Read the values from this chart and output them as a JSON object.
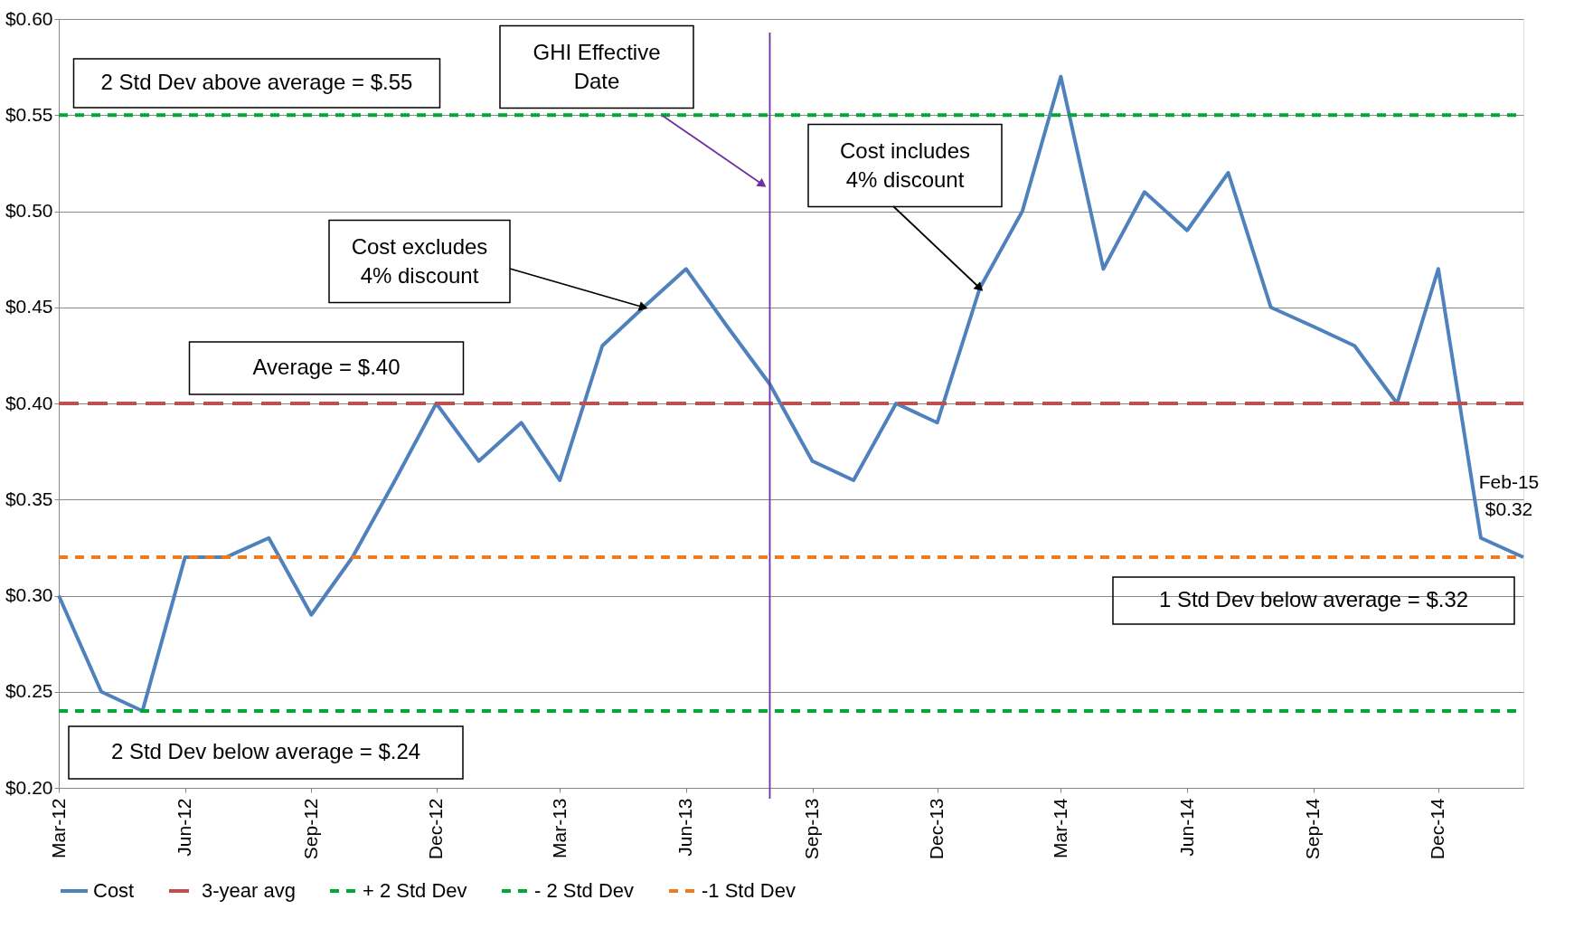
{
  "chart_data": {
    "type": "line",
    "x": [
      "2012-03",
      "2012-04",
      "2012-05",
      "2012-06",
      "2012-07",
      "2012-08",
      "2012-09",
      "2012-10",
      "2012-11",
      "2012-12",
      "2013-01",
      "2013-02",
      "2013-03",
      "2013-04",
      "2013-05",
      "2013-06",
      "2013-07",
      "2013-08",
      "2013-09",
      "2013-10",
      "2013-11",
      "2013-12",
      "2014-01",
      "2014-02",
      "2014-03",
      "2014-04",
      "2014-05",
      "2014-06",
      "2014-07",
      "2014-08",
      "2014-09",
      "2014-10",
      "2014-11",
      "2014-12",
      "2015-01",
      "2015-02"
    ],
    "series": [
      {
        "name": "Cost",
        "color": "#4f81bd",
        "line_style": "solid",
        "values": [
          0.3,
          0.25,
          0.24,
          0.32,
          0.32,
          0.33,
          0.29,
          0.32,
          0.36,
          0.4,
          0.37,
          0.39,
          0.36,
          0.43,
          0.45,
          0.47,
          0.44,
          0.41,
          0.37,
          0.36,
          0.4,
          0.39,
          0.46,
          0.5,
          0.57,
          0.47,
          0.51,
          0.49,
          0.52,
          0.45,
          0.44,
          0.43,
          0.4,
          0.47,
          0.33,
          0.32
        ]
      },
      {
        "name": "3-year avg",
        "color": "#c0504d",
        "line_style": "dashed",
        "values": [
          0.4,
          0.4,
          0.4,
          0.4,
          0.4,
          0.4,
          0.4,
          0.4,
          0.4,
          0.4,
          0.4,
          0.4,
          0.4,
          0.4,
          0.4,
          0.4,
          0.4,
          0.4,
          0.4,
          0.4,
          0.4,
          0.4,
          0.4,
          0.4,
          0.4,
          0.4,
          0.4,
          0.4,
          0.4,
          0.4,
          0.4,
          0.4,
          0.4,
          0.4,
          0.4,
          0.4
        ]
      },
      {
        "name": "+ 2 Std Dev",
        "color": "#00a933",
        "line_style": "dotted",
        "values": [
          0.55,
          0.55,
          0.55,
          0.55,
          0.55,
          0.55,
          0.55,
          0.55,
          0.55,
          0.55,
          0.55,
          0.55,
          0.55,
          0.55,
          0.55,
          0.55,
          0.55,
          0.55,
          0.55,
          0.55,
          0.55,
          0.55,
          0.55,
          0.55,
          0.55,
          0.55,
          0.55,
          0.55,
          0.55,
          0.55,
          0.55,
          0.55,
          0.55,
          0.55,
          0.55,
          0.55
        ]
      },
      {
        "name": "- 2 Std Dev",
        "color": "#00a933",
        "line_style": "dotted",
        "values": [
          0.24,
          0.24,
          0.24,
          0.24,
          0.24,
          0.24,
          0.24,
          0.24,
          0.24,
          0.24,
          0.24,
          0.24,
          0.24,
          0.24,
          0.24,
          0.24,
          0.24,
          0.24,
          0.24,
          0.24,
          0.24,
          0.24,
          0.24,
          0.24,
          0.24,
          0.24,
          0.24,
          0.24,
          0.24,
          0.24,
          0.24,
          0.24,
          0.24,
          0.24,
          0.24,
          0.24
        ]
      },
      {
        "name": "-1 Std Dev",
        "color": "#f07b1e",
        "line_style": "dotted",
        "values": [
          0.32,
          0.32,
          0.32,
          0.32,
          0.32,
          0.32,
          0.32,
          0.32,
          0.32,
          0.32,
          0.32,
          0.32,
          0.32,
          0.32,
          0.32,
          0.32,
          0.32,
          0.32,
          0.32,
          0.32,
          0.32,
          0.32,
          0.32,
          0.32,
          0.32,
          0.32,
          0.32,
          0.32,
          0.32,
          0.32,
          0.32,
          0.32,
          0.32,
          0.32,
          0.32,
          0.32
        ]
      }
    ],
    "xlim": [
      "2012-03",
      "2015-02"
    ],
    "xticks": [
      {
        "value": "2012-03",
        "label": "Mar-12"
      },
      {
        "value": "2012-06",
        "label": "Jun-12"
      },
      {
        "value": "2012-09",
        "label": "Sep-12"
      },
      {
        "value": "2012-12",
        "label": "Dec-12"
      },
      {
        "value": "2013-03",
        "label": "Mar-13"
      },
      {
        "value": "2013-06",
        "label": "Jun-13"
      },
      {
        "value": "2013-09",
        "label": "Sep-13"
      },
      {
        "value": "2013-12",
        "label": "Dec-13"
      },
      {
        "value": "2014-03",
        "label": "Mar-14"
      },
      {
        "value": "2014-06",
        "label": "Jun-14"
      },
      {
        "value": "2014-09",
        "label": "Sep-14"
      },
      {
        "value": "2014-12",
        "label": "Dec-14"
      }
    ],
    "ylim": [
      0.2,
      0.6
    ],
    "yticks": [
      {
        "value": 0.2,
        "label": "$0.20"
      },
      {
        "value": 0.25,
        "label": "$0.25"
      },
      {
        "value": 0.3,
        "label": "$0.30"
      },
      {
        "value": 0.35,
        "label": "$0.35"
      },
      {
        "value": 0.4,
        "label": "$0.40"
      },
      {
        "value": 0.45,
        "label": "$0.45"
      },
      {
        "value": 0.5,
        "label": "$0.50"
      },
      {
        "value": 0.55,
        "label": "$0.55"
      },
      {
        "value": 0.6,
        "label": "$0.60"
      }
    ],
    "grid": "y",
    "legend": "bottom",
    "marker": "none",
    "ref_lines": [
      {
        "axis": "x",
        "value": "2013-08",
        "label": "GHI Effective\nDate",
        "color": "#7030a0",
        "line_style": "solid"
      }
    ],
    "annotations": [
      "2 Std Dev above average = $.55",
      {
        "text": "Cost excludes\n4% discount",
        "x": "2013-05",
        "y": 0.45
      },
      "Average = $.40",
      {
        "text": "Cost includes\n4% discount",
        "x": "2014-01",
        "y": 0.46
      },
      "1 Std Dev below average = $.32",
      "2 Std Dev below average = $.24",
      {
        "text": "Feb-15\n$0.32",
        "x": "2015-02",
        "y": 0.32
      }
    ]
  }
}
